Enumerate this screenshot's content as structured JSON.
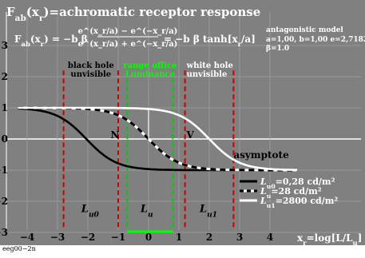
{
  "chart_data": {
    "type": "line",
    "title": "F_ab(x_r)=achromatic receptor response",
    "formula": {
      "lhs": "F_ab(x_r) = −b β",
      "numerator": "e^(x_r/a) − e^(−x_r/a)",
      "denominator": "e^(x_r/a) + e^(−x_r/a)",
      "rhs": "= −b β tanh[x_r/a]"
    },
    "model": {
      "heading": "antagonistic model",
      "params": "a=1,00, b=1,00 e=2,7182",
      "beta": "β=1.0"
    },
    "xlabel": "x_r=log[L/L_u]",
    "xlim": [
      -4.3,
      4.9
    ],
    "ylim": [
      -3,
      3.6
    ],
    "xticks": [
      -4,
      -3,
      -2,
      -1,
      0,
      1,
      2,
      3,
      4
    ],
    "yticks": [
      -3,
      -2,
      -1,
      0,
      1,
      2,
      3
    ],
    "series": [
      {
        "name": "L_u0=0,28 cd/m²",
        "color": "#000000",
        "shift": -2.05,
        "dashed": false,
        "x": [
          -4.3,
          -3.5,
          -3.0,
          -2.5,
          -2.0,
          -1.5,
          -1.0,
          -0.5,
          0.0,
          1.0,
          2.0,
          3.0,
          4.9
        ],
        "y": [
          0.998,
          0.97,
          0.9,
          0.75,
          0.05,
          -0.51,
          -0.82,
          -0.95,
          -0.98,
          -1.0,
          -1.0,
          -1.0,
          -1.0
        ]
      },
      {
        "name": "L_u=28 cd/m²",
        "color": "#000000",
        "shift": 0.0,
        "dashed": true,
        "x": [
          -4.3,
          -3.0,
          -2.0,
          -1.5,
          -1.0,
          -0.5,
          0.0,
          0.5,
          1.0,
          1.5,
          2.0,
          3.0,
          4.9
        ],
        "y": [
          1.0,
          1.0,
          0.96,
          0.91,
          0.76,
          0.46,
          0.0,
          -0.46,
          -0.76,
          -0.91,
          -0.96,
          -1.0,
          -1.0
        ]
      },
      {
        "name": "L_u1=2800 cd/m²",
        "color": "#ffffff",
        "shift": 2.0,
        "dashed": false,
        "x": [
          -4.3,
          -3.0,
          -1.0,
          0.0,
          0.5,
          1.0,
          1.5,
          2.0,
          2.5,
          3.0,
          3.5,
          4.0,
          4.9
        ],
        "y": [
          1.0,
          1.0,
          1.0,
          0.96,
          0.91,
          0.76,
          0.46,
          0.0,
          -0.46,
          -0.76,
          -0.91,
          -0.96,
          -0.99
        ]
      }
    ],
    "regions": [
      {
        "label": "black hole\nunvisible",
        "from": -2.8,
        "to": -1.0,
        "color": "#cc0000"
      },
      {
        "label": "range office\nLuminance",
        "from": -0.7,
        "to": 0.8,
        "color": "#00cc00"
      },
      {
        "label": "white hole\nunvisible",
        "from": 1.2,
        "to": 2.8,
        "color": "#cc0000"
      }
    ],
    "region_labels": [
      "L_u0",
      "L_u",
      "L_u1"
    ],
    "annotations": {
      "N": "N",
      "V": "V",
      "asymptote": "asymptote"
    },
    "legend": [
      "L_u0=0,28 cd/m²",
      "L_u=28 cd/m²",
      "L_u1=2800 cd/m²"
    ],
    "grid": true,
    "background": "#808080"
  },
  "footer": "eeg00−2n"
}
